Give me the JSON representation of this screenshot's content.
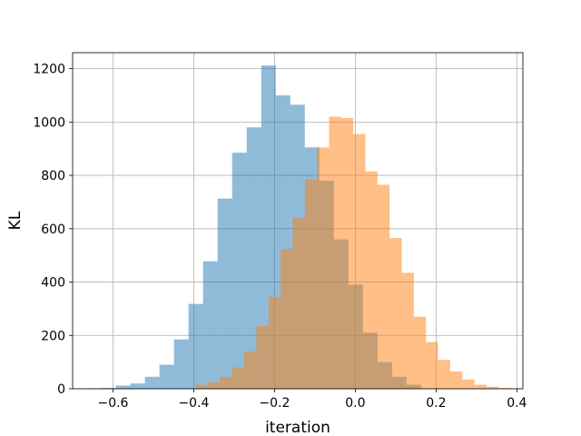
{
  "chart_data": {
    "type": "bar",
    "title": "",
    "xlabel": "iteration",
    "ylabel": "KL",
    "xlim": [
      -0.7,
      0.415
    ],
    "ylim": [
      0,
      1260
    ],
    "xticks": [
      -0.6,
      -0.4,
      -0.2,
      0.0,
      0.2,
      0.4
    ],
    "xtick_labels": [
      "−0.6",
      "−0.4",
      "−0.2",
      "0.0",
      "0.2",
      "0.4"
    ],
    "yticks": [
      0,
      200,
      400,
      600,
      800,
      1000,
      1200
    ],
    "ytick_labels": [
      "0",
      "200",
      "400",
      "600",
      "800",
      "1000",
      "1200"
    ],
    "grid": true,
    "series": [
      {
        "color": "#1f77b4",
        "opacity": 0.5,
        "bin_edges": [
          -0.665,
          -0.629,
          -0.593,
          -0.557,
          -0.521,
          -0.485,
          -0.449,
          -0.413,
          -0.377,
          -0.341,
          -0.305,
          -0.269,
          -0.233,
          -0.197,
          -0.161,
          -0.125,
          -0.089,
          -0.053,
          -0.017,
          0.019,
          0.055,
          0.091,
          0.127,
          0.163
        ],
        "values": [
          2,
          3,
          12,
          20,
          45,
          90,
          185,
          318,
          478,
          713,
          885,
          980,
          1212,
          1100,
          1065,
          905,
          780,
          560,
          390,
          210,
          100,
          45,
          15
        ]
      },
      {
        "color": "#ff7f0e",
        "opacity": 0.5,
        "bin_edges": [
          -0.395,
          -0.365,
          -0.335,
          -0.305,
          -0.275,
          -0.245,
          -0.215,
          -0.185,
          -0.155,
          -0.125,
          -0.095,
          -0.065,
          -0.035,
          -0.005,
          0.025,
          0.055,
          0.085,
          0.115,
          0.145,
          0.175,
          0.205,
          0.235,
          0.265,
          0.295,
          0.325,
          0.355,
          0.385
        ],
        "values": [
          15,
          25,
          45,
          80,
          140,
          235,
          345,
          525,
          640,
          785,
          905,
          1020,
          1015,
          955,
          815,
          765,
          565,
          435,
          270,
          175,
          108,
          65,
          35,
          15,
          8,
          3
        ]
      }
    ]
  }
}
